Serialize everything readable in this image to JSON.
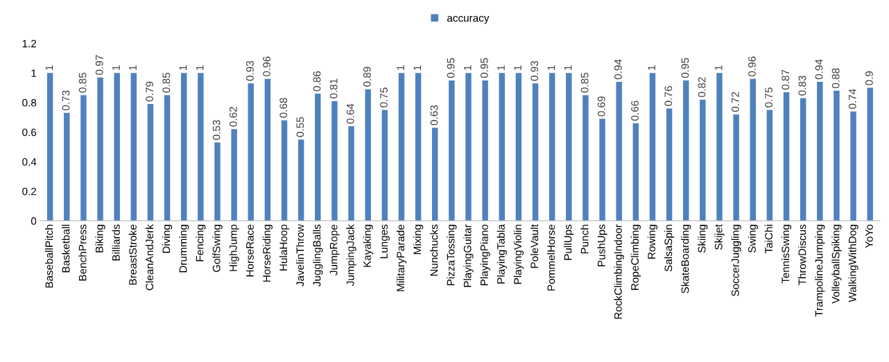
{
  "chart_data": {
    "type": "bar",
    "categories": [
      "BaseballPitch",
      "Basketball",
      "BenchPress",
      "Biking",
      "Billiards",
      "BreastStroke",
      "CleanAndJerk",
      "Diving",
      "Drumming",
      "Fencing",
      "GolfSwing",
      "HighJump",
      "HorseRace",
      "HorseRiding",
      "HulaHoop",
      "JavelinThrow",
      "JugglingBalls",
      "JumpRope",
      "JumpingJack",
      "Kayaking",
      "Lunges",
      "MilitaryParade",
      "Mixing",
      "Nunchucks",
      "PizzaTossing",
      "PlayingGuitar",
      "PlayingPiano",
      "PlayingTabla",
      "PlayingViolin",
      "PoleVault",
      "PommelHorse",
      "PullUps",
      "Punch",
      "PushUps",
      "RockClimbingIndoor",
      "RopeClimbing",
      "Rowing",
      "SalsaSpin",
      "SkateBoarding",
      "Skiing",
      "Skijet",
      "SoccerJuggling",
      "Swing",
      "TaiChi",
      "TennisSwing",
      "ThrowDiscus",
      "TrampolineJumping",
      "VolleyballSpiking",
      "WalkingWithDog",
      "YoYo"
    ],
    "series": [
      {
        "name": "accuracy",
        "color": "#4f81bd",
        "values": [
          1,
          0.73,
          0.85,
          0.97,
          1,
          1,
          0.79,
          0.85,
          1,
          1,
          0.53,
          0.62,
          0.93,
          0.96,
          0.68,
          0.55,
          0.86,
          0.81,
          0.64,
          0.89,
          0.75,
          1,
          1,
          0.63,
          0.95,
          1,
          0.95,
          1,
          1,
          0.93,
          1,
          1,
          0.85,
          0.69,
          0.94,
          0.66,
          1,
          0.76,
          0.95,
          0.82,
          1,
          0.72,
          0.96,
          0.75,
          0.87,
          0.83,
          0.94,
          0.88,
          0.74,
          0.9
        ]
      }
    ],
    "ylim": [
      0,
      1.2
    ],
    "yticks": [
      0,
      0.2,
      0.4,
      0.6,
      0.8,
      1,
      1.2
    ],
    "data_labels": true,
    "legend": "top",
    "grid": false
  }
}
